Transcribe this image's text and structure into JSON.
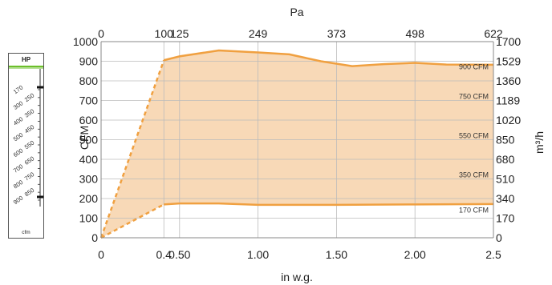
{
  "chart_data": {
    "type": "area",
    "title": "",
    "xlabel": "in w.g.",
    "ylabel": "CFM",
    "x2label": "Pa",
    "y2label": "m³/h",
    "xlim": [
      0,
      2.5
    ],
    "ylim": [
      0,
      1000
    ],
    "x_ticks": [
      "0",
      "0.4",
      "0.50",
      "1.00",
      "1.50",
      "2.00",
      "2.5"
    ],
    "x_tick_values": [
      0,
      0.4,
      0.5,
      1.0,
      1.5,
      2.0,
      2.5
    ],
    "y_ticks": [
      "0",
      "100",
      "200",
      "300",
      "400",
      "500",
      "600",
      "700",
      "800",
      "900",
      "1000"
    ],
    "y_tick_values": [
      0,
      100,
      200,
      300,
      400,
      500,
      600,
      700,
      800,
      900,
      1000
    ],
    "x2_ticks": [
      "0",
      "100",
      "125",
      "249",
      "373",
      "498",
      "622"
    ],
    "x2_tick_values": [
      0,
      0.4,
      0.5,
      1.0,
      1.5,
      2.0,
      2.5
    ],
    "y2_ticks": [
      "0",
      "170",
      "340",
      "510",
      "680",
      "850",
      "1020",
      "1189",
      "1360",
      "1529",
      "1700"
    ],
    "y2_tick_values": [
      0,
      100,
      200,
      300,
      400,
      500,
      600,
      700,
      800,
      900,
      1000
    ],
    "upper_curve": {
      "x": [
        0.4,
        0.5,
        0.75,
        1.0,
        1.2,
        1.4,
        1.6,
        1.8,
        2.0,
        2.2,
        2.5
      ],
      "y": [
        905,
        925,
        955,
        945,
        935,
        900,
        875,
        885,
        892,
        883,
        882
      ]
    },
    "lower_curve": {
      "x": [
        0.4,
        0.5,
        0.75,
        1.0,
        1.5,
        2.0,
        2.5
      ],
      "y": [
        170,
        175,
        175,
        168,
        168,
        170,
        172
      ]
    },
    "dashed_upper": {
      "x": [
        0,
        0.4
      ],
      "y": [
        0,
        905
      ]
    },
    "dashed_lower": {
      "x": [
        0,
        0.4
      ],
      "y": [
        0,
        170
      ]
    },
    "level_labels": [
      {
        "label": "900 CFM",
        "y": 900
      },
      {
        "label": "750 CFM",
        "y": 750
      },
      {
        "label": "550 CFM",
        "y": 550
      },
      {
        "label": "350 CFM",
        "y": 350
      },
      {
        "label": "170 CFM",
        "y": 170
      }
    ],
    "colors": {
      "fill": "#f8d9b7",
      "line": "#f0a040",
      "grid": "#bbbbbb",
      "axis": "#888888"
    }
  },
  "gauge": {
    "header": "HP",
    "footer": "cfm",
    "header_color": "#6bbf2a",
    "labels": [
      "170",
      "250",
      "300",
      "350",
      "400",
      "450",
      "500",
      "550",
      "600",
      "650",
      "700",
      "750",
      "800",
      "850",
      "900"
    ]
  }
}
